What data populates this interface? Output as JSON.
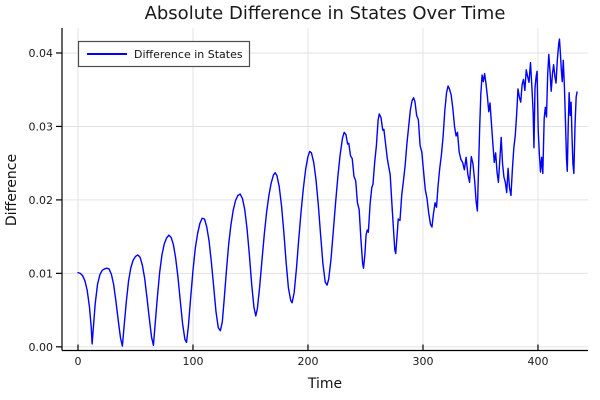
{
  "title": "Absolute Difference in States Over Time",
  "colors": {
    "series": "#0000ff",
    "grid": "#e3e3e3",
    "axis": "#000000",
    "legend_border": "#4d4d4d",
    "legend_fill": "#ffffff",
    "background": "#ffffff"
  },
  "chart_data": {
    "type": "line",
    "title": "Absolute Difference in States Over Time",
    "xlabel": "Time",
    "ylabel": "Difference",
    "grid": true,
    "legend": {
      "position": "top-left",
      "entries": [
        {
          "label": "Difference in States",
          "color": "#0000ff"
        }
      ]
    },
    "xlim": [
      -13.9,
      443.5
    ],
    "ylim": [
      -0.0005,
      0.0434
    ],
    "xticks": {
      "values": [
        0,
        100,
        200,
        300,
        400
      ],
      "labels": [
        "0",
        "100",
        "200",
        "300",
        "400"
      ]
    },
    "yticks": {
      "values": [
        0,
        0.01,
        0.02,
        0.03,
        0.04
      ],
      "labels": [
        "0.00",
        "0.01",
        "0.02",
        "0.03",
        "0.04"
      ]
    },
    "series": [
      {
        "name": "Difference in States",
        "color": "#0000ff",
        "points": [
          [
            0,
            0.0101
          ],
          [
            2,
            0.01
          ],
          [
            4,
            0.0097
          ],
          [
            6,
            0.009
          ],
          [
            8,
            0.0077
          ],
          [
            10,
            0.0054
          ],
          [
            11.5,
            0.0027
          ],
          [
            12.3,
            0.0004
          ],
          [
            13.2,
            0.0023
          ],
          [
            15,
            0.0059
          ],
          [
            17,
            0.0085
          ],
          [
            19,
            0.0098
          ],
          [
            21,
            0.0104
          ],
          [
            23,
            0.0106
          ],
          [
            25,
            0.0107
          ],
          [
            27,
            0.0106
          ],
          [
            29,
            0.0099
          ],
          [
            31,
            0.0085
          ],
          [
            33,
            0.0062
          ],
          [
            35,
            0.0036
          ],
          [
            37,
            0.0012
          ],
          [
            38.6,
            0.0001
          ],
          [
            40,
            0.0026
          ],
          [
            42,
            0.0061
          ],
          [
            44,
            0.009
          ],
          [
            46,
            0.0108
          ],
          [
            48,
            0.0118
          ],
          [
            50,
            0.0123
          ],
          [
            52,
            0.0125
          ],
          [
            54,
            0.0122
          ],
          [
            56,
            0.0111
          ],
          [
            58,
            0.0093
          ],
          [
            60,
            0.0067
          ],
          [
            62,
            0.0039
          ],
          [
            64,
            0.0013
          ],
          [
            65.6,
            0.0002
          ],
          [
            67,
            0.0029
          ],
          [
            69,
            0.0067
          ],
          [
            71,
            0.0101
          ],
          [
            73,
            0.0125
          ],
          [
            75,
            0.014
          ],
          [
            77,
            0.0148
          ],
          [
            79,
            0.0152
          ],
          [
            81,
            0.0149
          ],
          [
            83,
            0.0139
          ],
          [
            85,
            0.012
          ],
          [
            87,
            0.0094
          ],
          [
            89,
            0.0062
          ],
          [
            91,
            0.0031
          ],
          [
            93,
            0.001
          ],
          [
            94.4,
            0.0006
          ],
          [
            96,
            0.0028
          ],
          [
            98,
            0.0067
          ],
          [
            100,
            0.0104
          ],
          [
            102,
            0.0134
          ],
          [
            104,
            0.0154
          ],
          [
            106,
            0.0168
          ],
          [
            108,
            0.0175
          ],
          [
            110,
            0.0174
          ],
          [
            112,
            0.0163
          ],
          [
            114,
            0.0144
          ],
          [
            116,
            0.0115
          ],
          [
            118,
            0.0082
          ],
          [
            120,
            0.0048
          ],
          [
            122,
            0.0026
          ],
          [
            123.8,
            0.0022
          ],
          [
            125.5,
            0.0034
          ],
          [
            127,
            0.0062
          ],
          [
            129,
            0.0102
          ],
          [
            131,
            0.0139
          ],
          [
            133,
            0.0166
          ],
          [
            135,
            0.0186
          ],
          [
            137,
            0.0199
          ],
          [
            139,
            0.0206
          ],
          [
            141,
            0.0208
          ],
          [
            143,
            0.0202
          ],
          [
            145,
            0.0187
          ],
          [
            147,
            0.0161
          ],
          [
            149,
            0.0126
          ],
          [
            151,
            0.0086
          ],
          [
            153,
            0.0054
          ],
          [
            154.6,
            0.0042
          ],
          [
            156,
            0.0052
          ],
          [
            158,
            0.0082
          ],
          [
            160,
            0.0118
          ],
          [
            162,
            0.0153
          ],
          [
            164,
            0.0183
          ],
          [
            166,
            0.0206
          ],
          [
            168,
            0.0223
          ],
          [
            170,
            0.0234
          ],
          [
            171.5,
            0.0237
          ],
          [
            173,
            0.0233
          ],
          [
            175,
            0.0218
          ],
          [
            177,
            0.0192
          ],
          [
            179,
            0.0156
          ],
          [
            181,
            0.0115
          ],
          [
            183,
            0.008
          ],
          [
            185,
            0.0063
          ],
          [
            186.2,
            0.006
          ],
          [
            188,
            0.0074
          ],
          [
            190,
            0.0107
          ],
          [
            192,
            0.0147
          ],
          [
            194,
            0.0184
          ],
          [
            196,
            0.0216
          ],
          [
            198,
            0.0242
          ],
          [
            200,
            0.0259
          ],
          [
            201.5,
            0.0266
          ],
          [
            203,
            0.0264
          ],
          [
            205,
            0.0251
          ],
          [
            207,
            0.0227
          ],
          [
            209,
            0.0193
          ],
          [
            211,
            0.0152
          ],
          [
            213,
            0.0113
          ],
          [
            215,
            0.0088
          ],
          [
            216.6,
            0.0084
          ],
          [
            218,
            0.0092
          ],
          [
            220,
            0.0119
          ],
          [
            222,
            0.0157
          ],
          [
            224,
            0.0196
          ],
          [
            226,
            0.0232
          ],
          [
            228,
            0.0262
          ],
          [
            230,
            0.0284
          ],
          [
            231.5,
            0.0292
          ],
          [
            233,
            0.0289
          ],
          [
            234.5,
            0.0276
          ],
          [
            235.5,
            0.0277
          ],
          [
            237,
            0.026
          ],
          [
            238.5,
            0.0256
          ],
          [
            240,
            0.0232
          ],
          [
            241.5,
            0.0226
          ],
          [
            243,
            0.0196
          ],
          [
            244.5,
            0.0187
          ],
          [
            246,
            0.0147
          ],
          [
            247.5,
            0.0114
          ],
          [
            248.3,
            0.0107
          ],
          [
            249.5,
            0.0126
          ],
          [
            250.5,
            0.0152
          ],
          [
            251.5,
            0.0159
          ],
          [
            252.5,
            0.0156
          ],
          [
            254,
            0.0194
          ],
          [
            255.5,
            0.0217
          ],
          [
            256.5,
            0.0221
          ],
          [
            258,
            0.0251
          ],
          [
            259.5,
            0.0274
          ],
          [
            261,
            0.0309
          ],
          [
            262,
            0.0317
          ],
          [
            263.5,
            0.0312
          ],
          [
            265,
            0.0295
          ],
          [
            266,
            0.0296
          ],
          [
            267.5,
            0.0276
          ],
          [
            269,
            0.0256
          ],
          [
            270,
            0.0247
          ],
          [
            271.5,
            0.0234
          ],
          [
            273,
            0.0194
          ],
          [
            274,
            0.0169
          ],
          [
            275.5,
            0.0132
          ],
          [
            276.3,
            0.0127
          ],
          [
            277.5,
            0.0152
          ],
          [
            278.5,
            0.0174
          ],
          [
            280,
            0.0172
          ],
          [
            281.5,
            0.0206
          ],
          [
            283,
            0.0226
          ],
          [
            284.5,
            0.0247
          ],
          [
            286,
            0.0276
          ],
          [
            287.5,
            0.0299
          ],
          [
            289,
            0.0322
          ],
          [
            290.5,
            0.0335
          ],
          [
            291.8,
            0.0339
          ],
          [
            293,
            0.0334
          ],
          [
            294.5,
            0.0315
          ],
          [
            296,
            0.0309
          ],
          [
            297.5,
            0.0274
          ],
          [
            299,
            0.0265
          ],
          [
            300.5,
            0.0239
          ],
          [
            302,
            0.0214
          ],
          [
            303.5,
            0.0202
          ],
          [
            305,
            0.0182
          ],
          [
            306.5,
            0.0167
          ],
          [
            307.8,
            0.0163
          ],
          [
            309,
            0.018
          ],
          [
            310.5,
            0.0196
          ],
          [
            311.8,
            0.019
          ],
          [
            313,
            0.0217
          ],
          [
            314.5,
            0.0242
          ],
          [
            316,
            0.0261
          ],
          [
            317.5,
            0.0286
          ],
          [
            319,
            0.0322
          ],
          [
            320.5,
            0.0346
          ],
          [
            321.8,
            0.0355
          ],
          [
            323,
            0.0351
          ],
          [
            324.5,
            0.0343
          ],
          [
            326,
            0.0324
          ],
          [
            327.5,
            0.0299
          ],
          [
            328.8,
            0.0287
          ],
          [
            330,
            0.0292
          ],
          [
            331.5,
            0.0265
          ],
          [
            333,
            0.0255
          ],
          [
            334.5,
            0.0251
          ],
          [
            336,
            0.0241
          ],
          [
            337.5,
            0.0258
          ],
          [
            339,
            0.0235
          ],
          [
            340.5,
            0.0224
          ],
          [
            342,
            0.0259
          ],
          [
            343.5,
            0.0249
          ],
          [
            345,
            0.0225
          ],
          [
            346.2,
            0.0198
          ],
          [
            347.3,
            0.0185
          ],
          [
            348.3,
            0.0241
          ],
          [
            349.3,
            0.0298
          ],
          [
            350.3,
            0.0344
          ],
          [
            351.4,
            0.037
          ],
          [
            352.5,
            0.0361
          ],
          [
            353.6,
            0.0372
          ],
          [
            354.8,
            0.0358
          ],
          [
            356,
            0.0341
          ],
          [
            357.2,
            0.032
          ],
          [
            358.3,
            0.0332
          ],
          [
            359.5,
            0.0305
          ],
          [
            360.7,
            0.0278
          ],
          [
            362,
            0.0251
          ],
          [
            363.2,
            0.0264
          ],
          [
            364.4,
            0.0238
          ],
          [
            365.6,
            0.0224
          ],
          [
            366.8,
            0.0254
          ],
          [
            368,
            0.0285
          ],
          [
            369.2,
            0.0249
          ],
          [
            370.4,
            0.0231
          ],
          [
            371.6,
            0.0224
          ],
          [
            372.8,
            0.021
          ],
          [
            374,
            0.0243
          ],
          [
            375.2,
            0.0217
          ],
          [
            376.5,
            0.0206
          ],
          [
            377.8,
            0.0243
          ],
          [
            379,
            0.0271
          ],
          [
            380.2,
            0.0287
          ],
          [
            381.4,
            0.0315
          ],
          [
            382.6,
            0.0351
          ],
          [
            383.8,
            0.034
          ],
          [
            385,
            0.0333
          ],
          [
            386.2,
            0.0357
          ],
          [
            387.4,
            0.0364
          ],
          [
            388.6,
            0.0349
          ],
          [
            389.8,
            0.0377
          ],
          [
            391,
            0.0368
          ],
          [
            392.2,
            0.036
          ],
          [
            393.5,
            0.0387
          ],
          [
            394.7,
            0.0354
          ],
          [
            395.8,
            0.0319
          ],
          [
            396.5,
            0.0271
          ],
          [
            397.4,
            0.0352
          ],
          [
            398.4,
            0.0368
          ],
          [
            399.2,
            0.0375
          ],
          [
            400.2,
            0.0295
          ],
          [
            401.2,
            0.0262
          ],
          [
            402.2,
            0.0238
          ],
          [
            403.2,
            0.0258
          ],
          [
            404.2,
            0.0236
          ],
          [
            405.4,
            0.0311
          ],
          [
            406.4,
            0.0326
          ],
          [
            407.4,
            0.0313
          ],
          [
            408.4,
            0.0369
          ],
          [
            409.4,
            0.0398
          ],
          [
            410.5,
            0.0374
          ],
          [
            411.5,
            0.0348
          ],
          [
            412.6,
            0.0372
          ],
          [
            413.6,
            0.0384
          ],
          [
            414.7,
            0.0368
          ],
          [
            415.7,
            0.0359
          ],
          [
            416.8,
            0.039
          ],
          [
            418,
            0.0412
          ],
          [
            418.7,
            0.0419
          ],
          [
            419.5,
            0.0399
          ],
          [
            420.3,
            0.0377
          ],
          [
            421.1,
            0.0361
          ],
          [
            422,
            0.039
          ],
          [
            423,
            0.0353
          ],
          [
            423.8,
            0.0312
          ],
          [
            424.8,
            0.0256
          ],
          [
            425.5,
            0.0239
          ],
          [
            426.3,
            0.0301
          ],
          [
            427.1,
            0.0346
          ],
          [
            428,
            0.0315
          ],
          [
            428.8,
            0.0333
          ],
          [
            429.6,
            0.0286
          ],
          [
            430.4,
            0.0249
          ],
          [
            431.2,
            0.0236
          ],
          [
            432.2,
            0.0301
          ],
          [
            433.2,
            0.034
          ],
          [
            434,
            0.0347
          ]
        ]
      }
    ]
  }
}
